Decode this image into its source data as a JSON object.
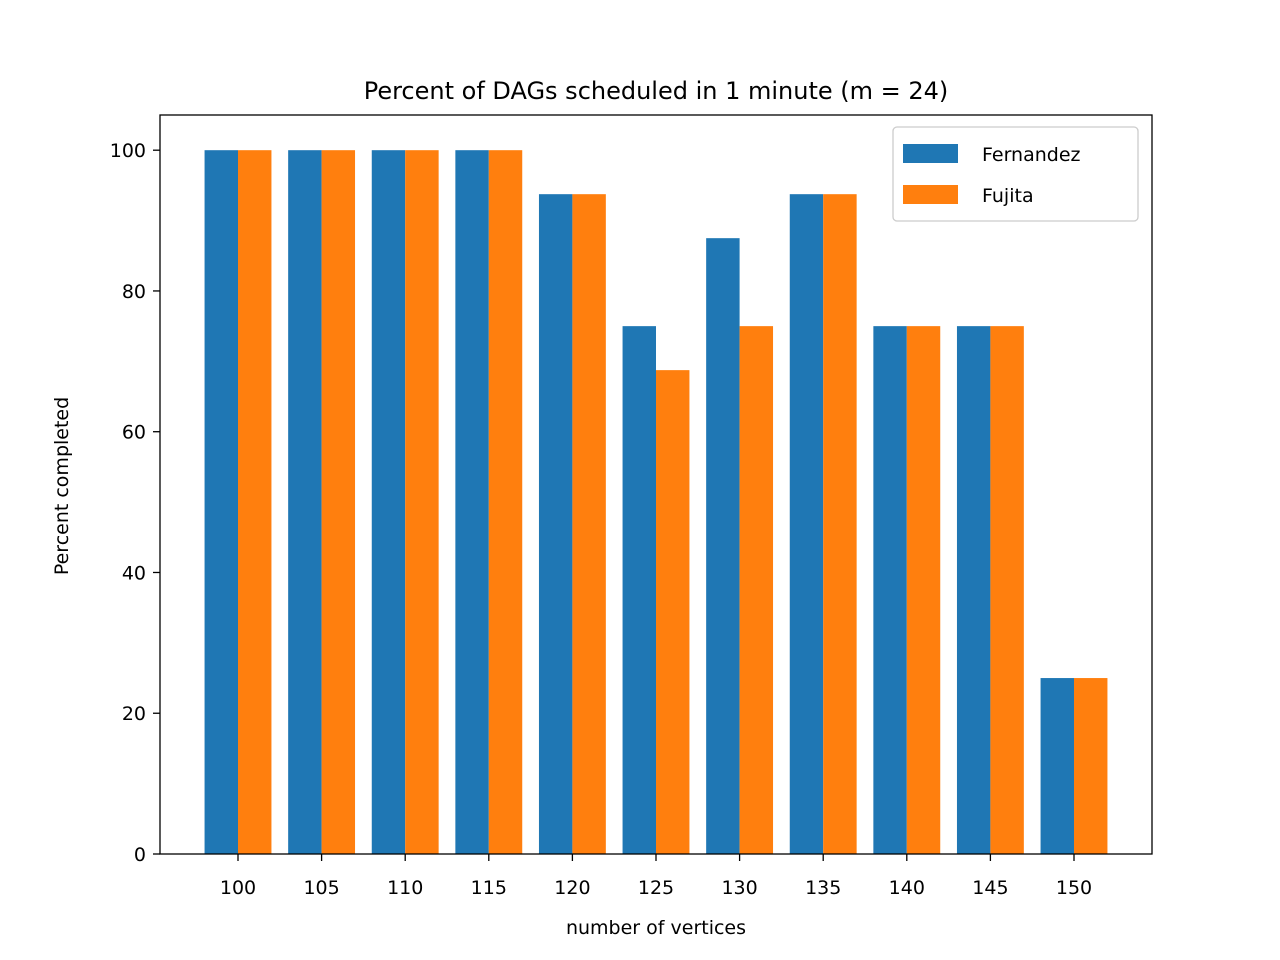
{
  "chart_data": {
    "type": "bar",
    "title": "Percent of DAGs scheduled in 1 minute (m = 24)",
    "xlabel": "number of vertices",
    "ylabel": "Percent completed",
    "categories": [
      "100",
      "105",
      "110",
      "115",
      "120",
      "125",
      "130",
      "135",
      "140",
      "145",
      "150"
    ],
    "series": [
      {
        "name": "Fernandez",
        "color": "#1f77b4",
        "values": [
          100,
          100,
          100,
          100,
          93.75,
          75,
          87.5,
          93.75,
          75,
          75,
          25
        ]
      },
      {
        "name": "Fujita",
        "color": "#ff7f0e",
        "values": [
          100,
          100,
          100,
          100,
          93.75,
          68.75,
          75,
          93.75,
          75,
          75,
          25
        ]
      }
    ],
    "ylim": [
      0,
      105
    ],
    "yticks": [
      0,
      20,
      40,
      60,
      80,
      100
    ],
    "grid": false,
    "legend_position": "top-right"
  }
}
